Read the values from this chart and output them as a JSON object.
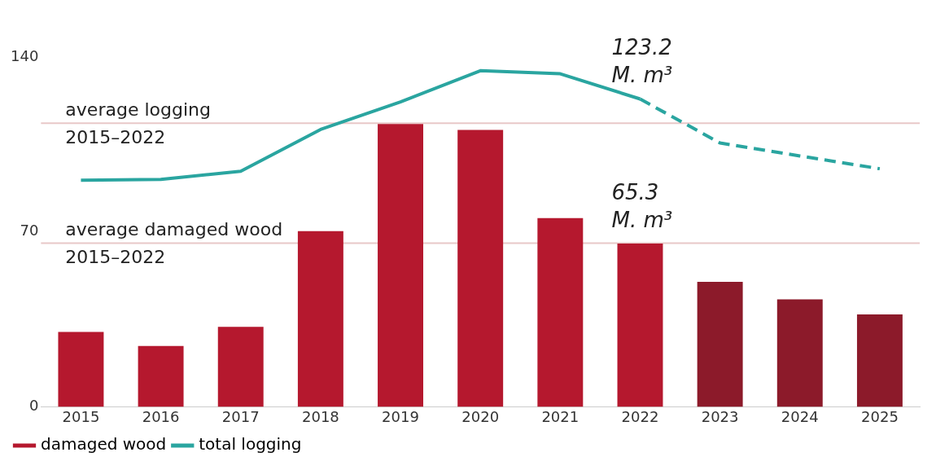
{
  "chart_data": {
    "type": "bar",
    "categories": [
      "2015",
      "2016",
      "2017",
      "2018",
      "2019",
      "2020",
      "2021",
      "2022",
      "2023",
      "2024",
      "2025"
    ],
    "series": [
      {
        "name": "damaged wood",
        "color": "#b5182e",
        "colors": [
          "#b5182e",
          "#b5182e",
          "#b5182e",
          "#b5182e",
          "#b5182e",
          "#b5182e",
          "#b5182e",
          "#b5182e",
          "#8c1a2a",
          "#8c1a2a",
          "#8c1a2a"
        ],
        "values": [
          30,
          24.3,
          32,
          70.3,
          113.2,
          110.8,
          75.5,
          65.3,
          50,
          43,
          37
        ]
      },
      {
        "name": "total logging",
        "type": "line",
        "color": "#2aa5a0",
        "line_style": "solid",
        "values": [
          90.7,
          91,
          94.3,
          111,
          122,
          134.5,
          133.3,
          123.2,
          null,
          null,
          null
        ]
      },
      {
        "type": "line",
        "color": "#2aa5a0",
        "line_style": "dashed",
        "values": [
          null,
          null,
          null,
          null,
          null,
          null,
          null,
          123.2,
          105.6,
          100.4,
          95.3
        ]
      }
    ],
    "ylim": [
      0,
      140
    ],
    "yticks": [
      0,
      70,
      140
    ],
    "grid": false,
    "legend": "bottom left",
    "marker": "none",
    "ref_lines": [
      {
        "axis": "y",
        "value": 113.5,
        "label": "average logging 2015–2022",
        "color": "#e8c8c8"
      },
      {
        "axis": "y",
        "value": 65.5,
        "label": "average damaged wood 2015–2022",
        "color": "#e8c8c8"
      }
    ],
    "annotations": [
      {
        "text": "123.2 M. m³",
        "x": "2022",
        "y": 123.2
      },
      {
        "text": "65.3 M. m³",
        "x": "2022",
        "y": 65.3
      }
    ]
  }
}
